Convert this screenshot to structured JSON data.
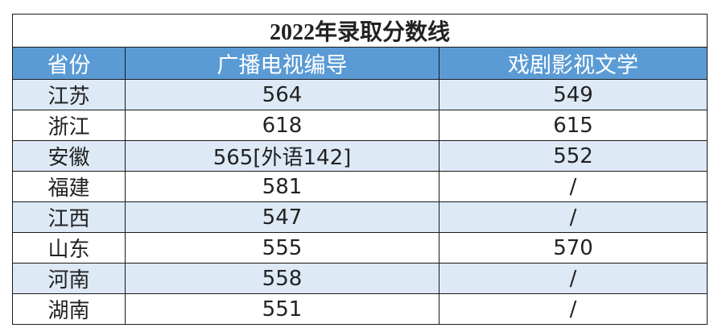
{
  "table": {
    "title": "2022年录取分数线",
    "header": [
      "省份",
      "广播电视编导",
      "戏剧影视文学"
    ],
    "rows": [
      [
        "江苏",
        "564",
        "549"
      ],
      [
        "浙江",
        "618",
        "615"
      ],
      [
        "安徽",
        "565[外语142]",
        "552"
      ],
      [
        "福建",
        "581",
        "/"
      ],
      [
        "江西",
        "547",
        "/"
      ],
      [
        "山东",
        "555",
        "570"
      ],
      [
        "河南",
        "558",
        "/"
      ],
      [
        "湖南",
        "551",
        "/"
      ]
    ]
  }
}
